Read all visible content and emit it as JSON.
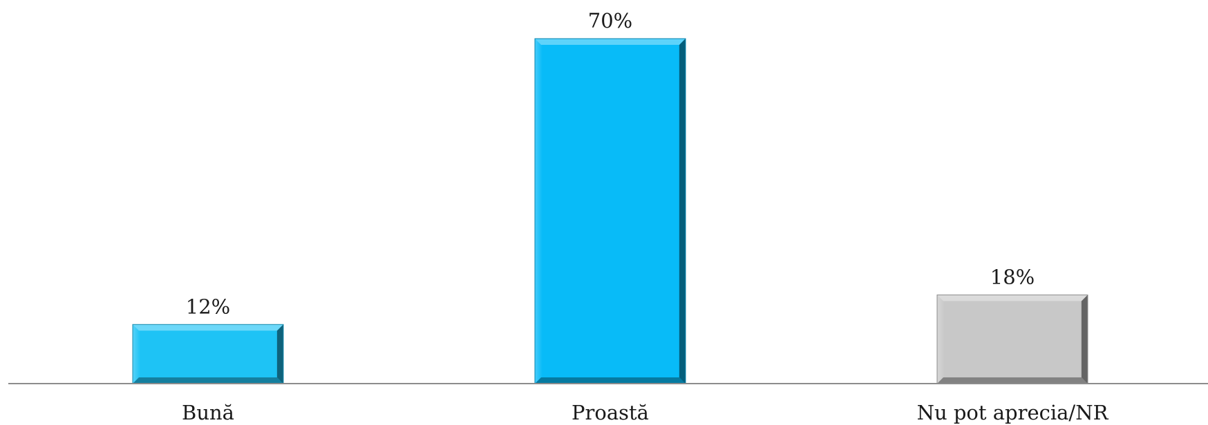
{
  "chart_data": {
    "type": "bar",
    "categories": [
      "Bună",
      "Proastă",
      "Nu pot aprecia/NR"
    ],
    "values": [
      12,
      70,
      18
    ],
    "data_labels": [
      "12%",
      "70%",
      "18%"
    ],
    "colors": [
      "#1ec3f5",
      "#08bbf8",
      "#c8c8c8"
    ],
    "ylim": [
      0,
      70
    ],
    "grid": false,
    "legend": "none"
  }
}
